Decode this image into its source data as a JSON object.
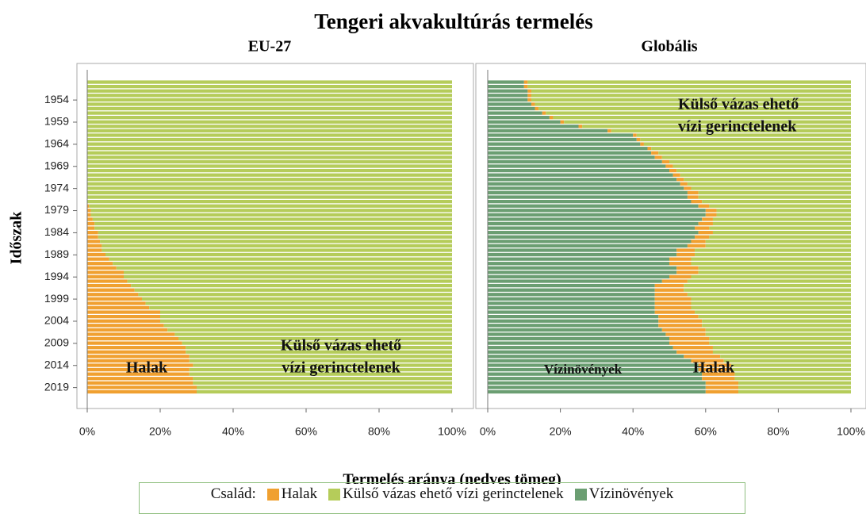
{
  "figure": {
    "title": "Tengeri akvakultúrás termelés",
    "ylabel": "Időszak",
    "xlabel": "Termelés aránya (nedves tömeg)",
    "legend_title": "Család:"
  },
  "chart_data": [
    {
      "type": "bar",
      "orientation": "horizontal",
      "stacked": true,
      "title": "EU-27",
      "categories": [
        null,
        null,
        null,
        null,
        "1954",
        null,
        null,
        null,
        null,
        "1959",
        null,
        null,
        null,
        null,
        "1964",
        null,
        null,
        null,
        null,
        "1969",
        null,
        null,
        null,
        null,
        "1974",
        null,
        null,
        null,
        null,
        "1979",
        null,
        null,
        null,
        null,
        "1984",
        null,
        null,
        null,
        null,
        "1989",
        null,
        null,
        null,
        null,
        "1994",
        null,
        null,
        null,
        null,
        "1999",
        null,
        null,
        null,
        null,
        "2004",
        null,
        null,
        null,
        null,
        "2009",
        null,
        null,
        null,
        null,
        "2014",
        null,
        null,
        null,
        null,
        "2019",
        null
      ],
      "series": [
        {
          "name": "Halak",
          "color": "#f0a030",
          "values": [
            0,
            0,
            0,
            0,
            0,
            0,
            0,
            0,
            0,
            0,
            0,
            0,
            0,
            0,
            0,
            0,
            0,
            0,
            0,
            0,
            0,
            0,
            0,
            0,
            0,
            0,
            0,
            0,
            0.5,
            1,
            1,
            1.5,
            2,
            2,
            3,
            3,
            3.5,
            4,
            4,
            5,
            6,
            7,
            8,
            10,
            10,
            11,
            12,
            13,
            14,
            15,
            16,
            17,
            20,
            20,
            20,
            21,
            22,
            24,
            25,
            26,
            27,
            27,
            28,
            28,
            29,
            28,
            28,
            29,
            29,
            30,
            30
          ]
        },
        {
          "name": "Külső vázas ehető vízi gerinctelenek",
          "color": "#b5cc5a",
          "values": [
            100,
            100,
            100,
            100,
            100,
            100,
            100,
            100,
            100,
            100,
            100,
            100,
            100,
            100,
            100,
            100,
            100,
            100,
            100,
            100,
            100,
            100,
            100,
            100,
            100,
            100,
            100,
            100,
            99.5,
            99,
            99,
            98.5,
            98,
            98,
            97,
            97,
            96.5,
            96,
            96,
            95,
            94,
            93,
            92,
            90,
            90,
            89,
            88,
            87,
            86,
            85,
            84,
            83,
            80,
            80,
            80,
            79,
            78,
            76,
            75,
            74,
            73,
            73,
            72,
            72,
            71,
            72,
            72,
            71,
            71,
            70,
            70
          ]
        }
      ],
      "annotations": [
        [
          "Halak"
        ],
        [
          "Külső vázas ehető",
          "vízi gerinctelenek"
        ]
      ],
      "xlim": [
        0,
        100
      ],
      "xticks": [
        {
          "value": 0,
          "label": "0%"
        },
        {
          "value": 20,
          "label": "20%"
        },
        {
          "value": 40,
          "label": "40%"
        },
        {
          "value": 60,
          "label": "60%"
        },
        {
          "value": 80,
          "label": "80%"
        },
        {
          "value": 100,
          "label": "100%"
        }
      ]
    },
    {
      "type": "bar",
      "orientation": "horizontal",
      "stacked": true,
      "title": "Globális",
      "categories": [
        null,
        null,
        null,
        null,
        "1954",
        null,
        null,
        null,
        null,
        "1959",
        null,
        null,
        null,
        null,
        "1964",
        null,
        null,
        null,
        null,
        "1969",
        null,
        null,
        null,
        null,
        "1974",
        null,
        null,
        null,
        null,
        "1979",
        null,
        null,
        null,
        null,
        "1984",
        null,
        null,
        null,
        null,
        "1989",
        null,
        null,
        null,
        null,
        "1994",
        null,
        null,
        null,
        null,
        "1999",
        null,
        null,
        null,
        null,
        "2004",
        null,
        null,
        null,
        null,
        "2009",
        null,
        null,
        null,
        null,
        "2014",
        null,
        null,
        null,
        null,
        "2019",
        null
      ],
      "series": [
        {
          "name": "Vízinövények",
          "color": "#6b9e72",
          "values": [
            10,
            10,
            11,
            11,
            11,
            12,
            13,
            15,
            17,
            20,
            25,
            33,
            40,
            41,
            42,
            44,
            45,
            46,
            48,
            49,
            50,
            51,
            52,
            53,
            54,
            55,
            55,
            56,
            58,
            60,
            60,
            59,
            58,
            57,
            58,
            57,
            56,
            55,
            52,
            52,
            50,
            50,
            52,
            52,
            50,
            48,
            46,
            46,
            46,
            46,
            46,
            46,
            46,
            47,
            47,
            47,
            48,
            49,
            50,
            50,
            51,
            52,
            54,
            56,
            58,
            58,
            59,
            59,
            60,
            60,
            60
          ]
        },
        {
          "name": "Halak",
          "color": "#f0a030",
          "values": [
            1,
            1,
            1,
            1,
            1,
            1,
            1,
            1,
            1,
            1,
            1,
            1,
            1,
            1,
            1,
            1,
            2,
            2,
            2,
            2,
            2,
            2,
            2,
            2,
            2,
            3,
            3,
            3,
            3,
            3,
            3,
            3,
            4,
            4,
            4,
            4,
            4,
            5,
            5,
            5,
            6,
            6,
            6,
            6,
            6,
            7,
            8,
            8,
            9,
            10,
            10,
            10,
            11,
            11,
            12,
            12,
            12,
            11,
            11,
            11,
            11,
            10,
            10,
            9,
            9,
            9,
            9,
            9,
            9,
            9,
            9
          ]
        },
        {
          "name": "Külső vázas ehető vízi gerinctelenek",
          "color": "#b5cc5a",
          "values": [
            89,
            89,
            88,
            88,
            88,
            87,
            86,
            84,
            82,
            79,
            74,
            66,
            59,
            58,
            57,
            55,
            53,
            52,
            50,
            49,
            48,
            47,
            46,
            45,
            44,
            42,
            42,
            41,
            39,
            37,
            37,
            38,
            38,
            39,
            38,
            39,
            40,
            40,
            43,
            43,
            44,
            44,
            42,
            42,
            44,
            45,
            46,
            46,
            45,
            44,
            44,
            44,
            43,
            42,
            41,
            41,
            40,
            40,
            39,
            39,
            38,
            38,
            36,
            35,
            33,
            33,
            32,
            32,
            31,
            31,
            31
          ]
        }
      ],
      "annotations": [
        [
          "Külső vázas ehető",
          "vízi gerinctelenek"
        ],
        [
          "Vízinövények"
        ],
        [
          "Halak"
        ]
      ],
      "xlim": [
        0,
        100
      ],
      "xticks": [
        {
          "value": 0,
          "label": "0%"
        },
        {
          "value": 20,
          "label": "20%"
        },
        {
          "value": 40,
          "label": "40%"
        },
        {
          "value": 60,
          "label": "60%"
        },
        {
          "value": 80,
          "label": "80%"
        },
        {
          "value": 100,
          "label": "100%"
        }
      ]
    }
  ]
}
